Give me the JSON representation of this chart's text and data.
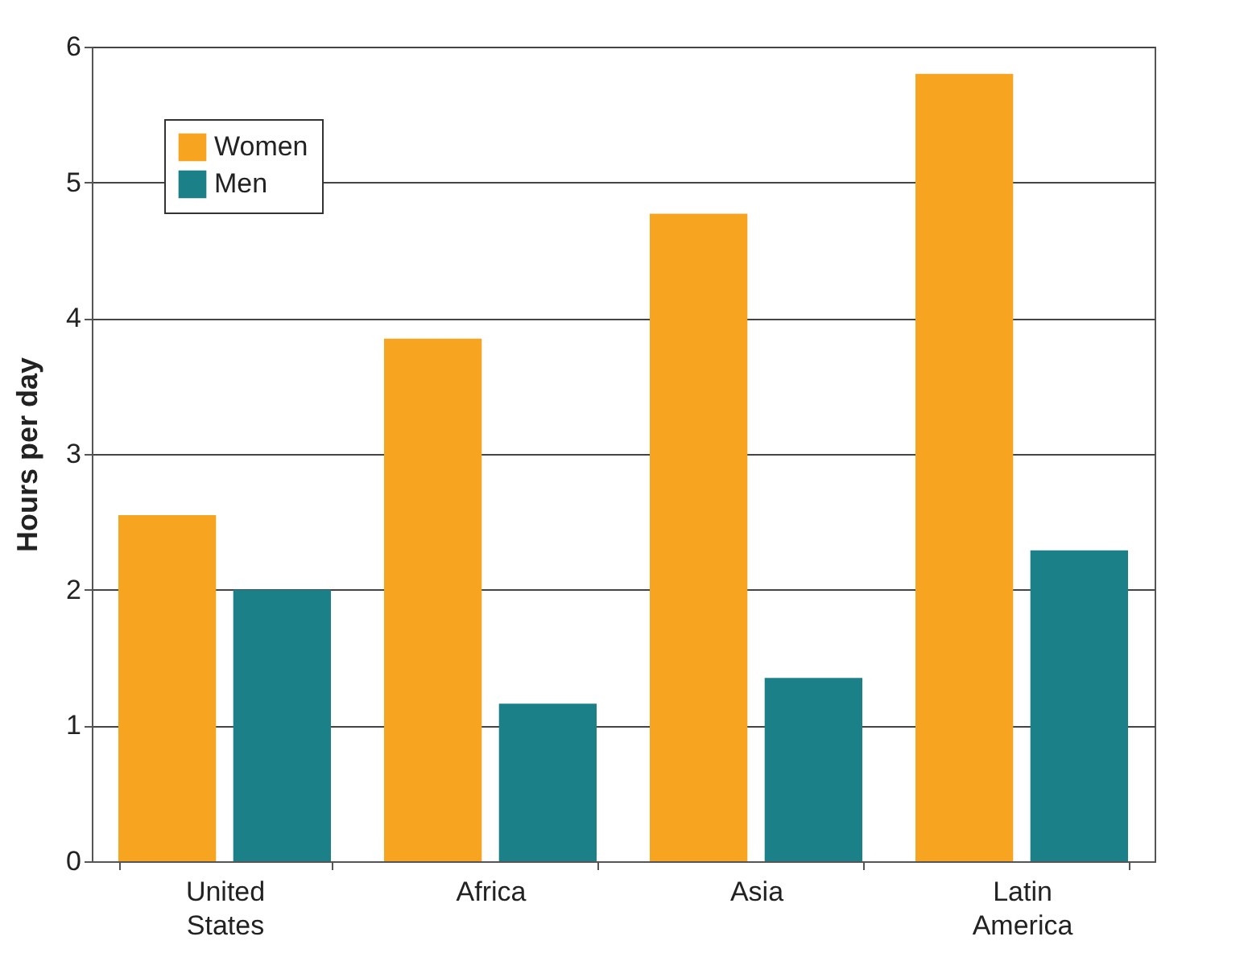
{
  "chart_data": {
    "type": "bar",
    "ylabel": "Hours per day",
    "categories": [
      "United States",
      "Africa",
      "Asia",
      "Latin America"
    ],
    "series": [
      {
        "name": "Women",
        "color": "#f7a521",
        "values": [
          2.55,
          3.85,
          4.77,
          5.8
        ]
      },
      {
        "name": "Men",
        "color": "#1b8087",
        "values": [
          2.0,
          1.16,
          1.35,
          2.29
        ]
      }
    ],
    "ylim": [
      0,
      6
    ],
    "yticks": [
      0,
      1,
      2,
      3,
      4,
      5,
      6
    ],
    "grid": "y",
    "legend": "top left"
  }
}
